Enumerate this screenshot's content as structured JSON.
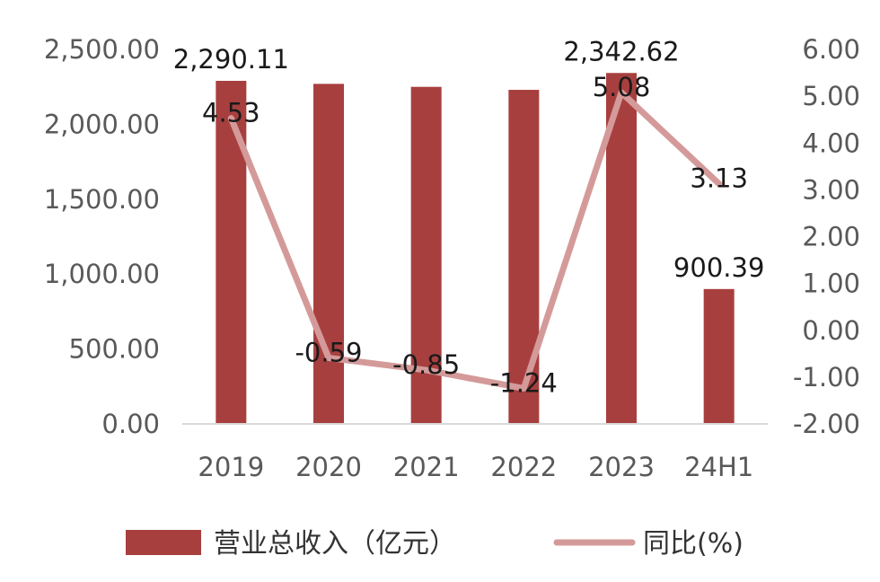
{
  "chart_data": {
    "type": "bar",
    "title": "",
    "categories": [
      "2019",
      "2020",
      "2021",
      "2022",
      "2023",
      "24H1"
    ],
    "series": [
      {
        "name": "营业总收入（亿元）",
        "type": "bar",
        "axis": "left",
        "color": "#A83F3F",
        "values": [
          2290.11,
          2270,
          2250,
          2230,
          2342.62,
          900.39
        ],
        "labels": [
          "2,290.11",
          "",
          "",
          "",
          "2,342.62",
          "900.39"
        ]
      },
      {
        "name": "同比(%)",
        "type": "line",
        "axis": "right",
        "color": "#D49A9A",
        "values": [
          4.53,
          -0.59,
          -0.85,
          -1.24,
          5.08,
          3.13
        ],
        "labels": [
          "4.53",
          "-0.59",
          "-0.85",
          "-1.24",
          "5.08",
          "3.13"
        ]
      }
    ],
    "y_left": {
      "ylim": [
        0,
        2500
      ],
      "ticks": [
        "0.00",
        "500.00",
        "1,000.00",
        "1,500.00",
        "2,000.00",
        "2,500.00"
      ]
    },
    "y_right": {
      "ylim": [
        -2,
        6
      ],
      "ticks": [
        "-2.00",
        "-1.00",
        "0.00",
        "1.00",
        "2.00",
        "3.00",
        "4.00",
        "5.00",
        "6.00"
      ]
    },
    "grid": false,
    "legend_position": "bottom"
  }
}
